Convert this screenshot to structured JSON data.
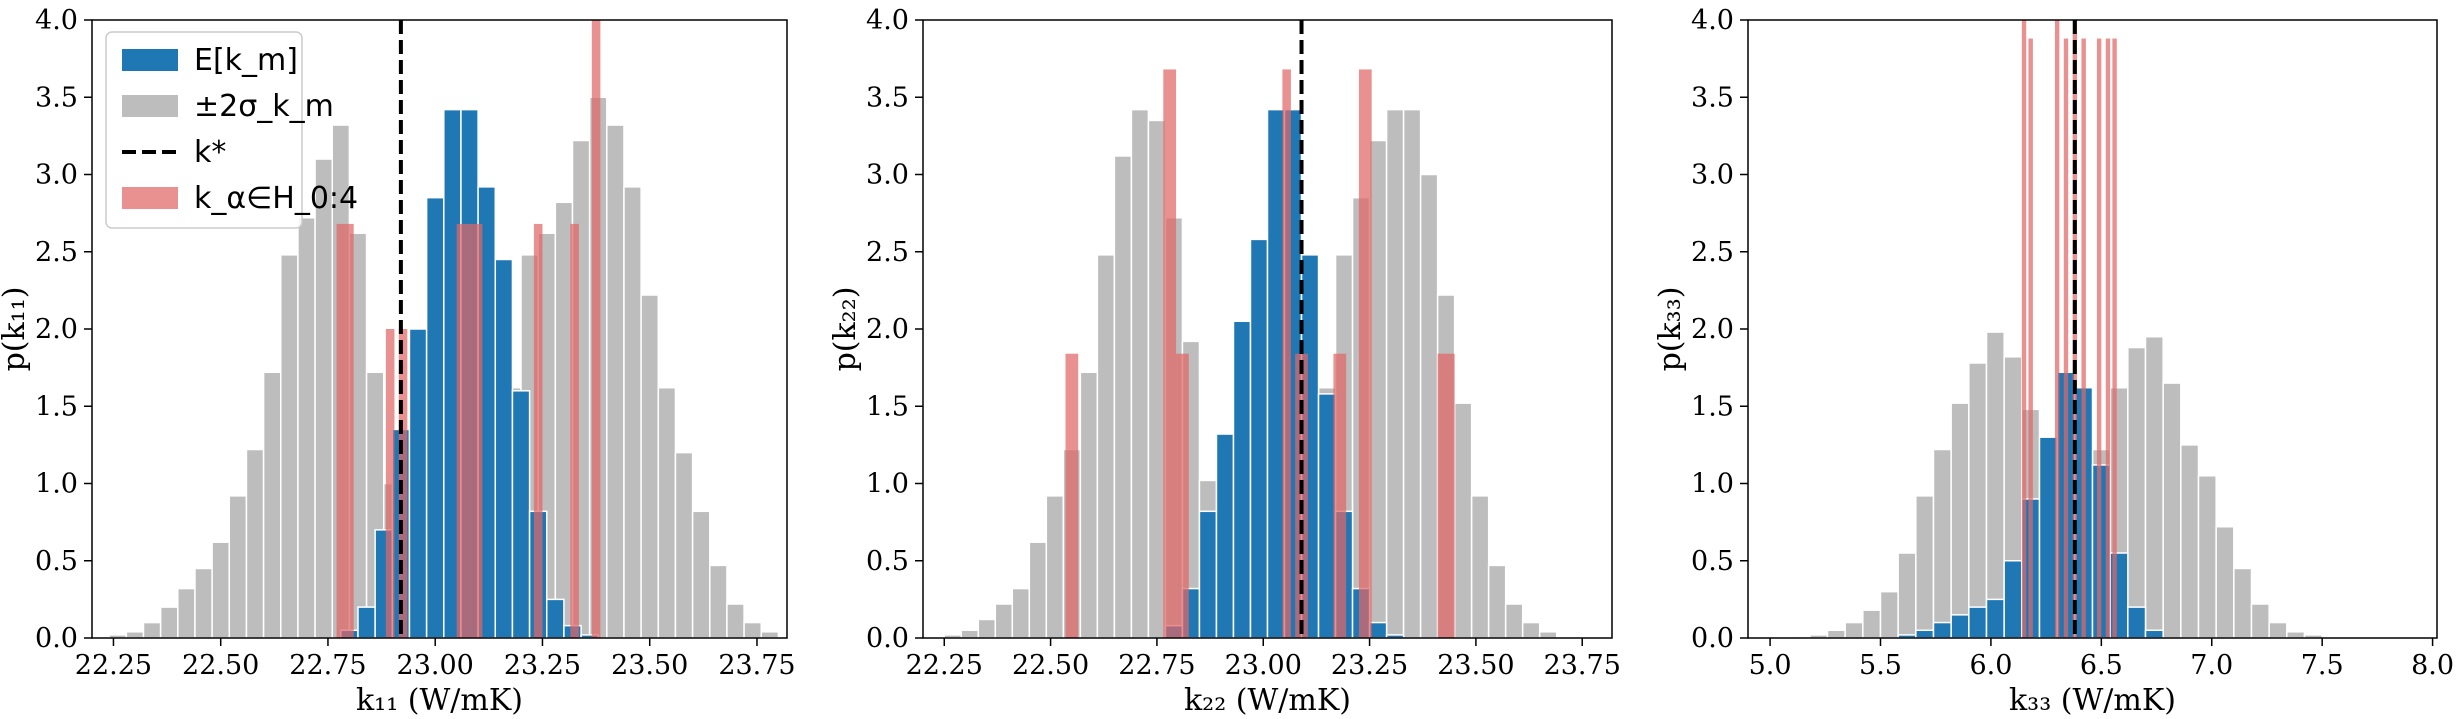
{
  "chart_data": [
    {
      "type": "histogram",
      "xlabel": "k₁₁ (W/mK)",
      "ylabel": "p(k₁₁)",
      "xlim": [
        22.2,
        23.82
      ],
      "ylim": [
        0,
        4.0
      ],
      "xticks": [
        "22.25",
        "22.50",
        "22.75",
        "23.00",
        "23.25",
        "23.50",
        "23.75"
      ],
      "yticks": [
        "0.0",
        "0.5",
        "1.0",
        "1.5",
        "2.0",
        "2.5",
        "3.0",
        "3.5",
        "4.0"
      ],
      "k_star": 22.92,
      "series": [
        {
          "name": "±2σ",
          "color": "#bdbdbd",
          "bins": [
            [
              22.24,
              22.28,
              0.02
            ],
            [
              22.28,
              22.32,
              0.04
            ],
            [
              22.32,
              22.36,
              0.1
            ],
            [
              22.36,
              22.4,
              0.2
            ],
            [
              22.4,
              22.44,
              0.32
            ],
            [
              22.44,
              22.48,
              0.45
            ],
            [
              22.48,
              22.52,
              0.62
            ],
            [
              22.52,
              22.56,
              0.92
            ],
            [
              22.56,
              22.6,
              1.22
            ],
            [
              22.6,
              22.64,
              1.72
            ],
            [
              22.64,
              22.68,
              2.48
            ],
            [
              22.68,
              22.72,
              2.72
            ],
            [
              22.72,
              22.76,
              3.1
            ],
            [
              22.76,
              22.8,
              3.32
            ],
            [
              22.8,
              22.84,
              2.62
            ],
            [
              22.84,
              22.88,
              1.72
            ],
            [
              22.88,
              22.92,
              1.0
            ],
            [
              22.92,
              22.96,
              0.52
            ],
            [
              22.96,
              23.0,
              0.22
            ],
            [
              23.0,
              23.04,
              0.12
            ],
            [
              23.04,
              23.08,
              0.22
            ],
            [
              23.08,
              23.12,
              0.52
            ],
            [
              23.12,
              23.16,
              1.02
            ],
            [
              23.16,
              23.2,
              1.62
            ],
            [
              23.2,
              23.24,
              2.48
            ],
            [
              23.24,
              23.28,
              2.62
            ],
            [
              23.28,
              23.32,
              2.82
            ],
            [
              23.32,
              23.36,
              3.22
            ],
            [
              23.36,
              23.4,
              3.5
            ],
            [
              23.4,
              23.44,
              3.32
            ],
            [
              23.44,
              23.48,
              2.92
            ],
            [
              23.48,
              23.52,
              2.22
            ],
            [
              23.52,
              23.56,
              1.62
            ],
            [
              23.56,
              23.6,
              1.2
            ],
            [
              23.6,
              23.64,
              0.82
            ],
            [
              23.64,
              23.68,
              0.47
            ],
            [
              23.68,
              23.72,
              0.22
            ],
            [
              23.72,
              23.76,
              0.1
            ],
            [
              23.76,
              23.8,
              0.04
            ]
          ]
        },
        {
          "name": "E[k_m]",
          "color": "#1f77b4",
          "bins": [
            [
              22.78,
              22.82,
              0.05
            ],
            [
              22.82,
              22.86,
              0.2
            ],
            [
              22.86,
              22.9,
              0.7
            ],
            [
              22.9,
              22.94,
              1.35
            ],
            [
              22.94,
              22.98,
              2.0
            ],
            [
              22.98,
              23.02,
              2.85
            ],
            [
              23.02,
              23.06,
              3.42
            ],
            [
              23.06,
              23.1,
              3.42
            ],
            [
              23.1,
              23.14,
              2.92
            ],
            [
              23.14,
              23.18,
              2.45
            ],
            [
              23.18,
              23.22,
              1.6
            ],
            [
              23.22,
              23.26,
              0.82
            ],
            [
              23.26,
              23.3,
              0.25
            ],
            [
              23.3,
              23.34,
              0.08
            ],
            [
              23.34,
              23.38,
              0.02
            ]
          ]
        },
        {
          "name": "k_α∈H_0:4",
          "color": "#e06666",
          "bins": [
            [
              22.77,
              22.79,
              2.68
            ],
            [
              22.79,
              22.81,
              2.68
            ],
            [
              22.885,
              22.905,
              2.0
            ],
            [
              22.915,
              22.935,
              2.0
            ],
            [
              23.05,
              23.09,
              2.68
            ],
            [
              23.09,
              23.11,
              2.68
            ],
            [
              23.23,
              23.25,
              2.68
            ],
            [
              23.315,
              23.335,
              2.68
            ],
            [
              23.365,
              23.385,
              4.0
            ]
          ]
        }
      ],
      "legend": [
        "E[k_m]",
        "±2σ_k_m",
        "k*",
        "k_α∈H_0:4"
      ]
    },
    {
      "type": "histogram",
      "xlabel": "k₂₂ (W/mK)",
      "ylabel": "p(k₂₂)",
      "xlim": [
        22.2,
        23.82
      ],
      "ylim": [
        0,
        4.0
      ],
      "xticks": [
        "22.25",
        "22.50",
        "22.75",
        "23.00",
        "23.25",
        "23.50",
        "23.75"
      ],
      "yticks": [
        "0.0",
        "0.5",
        "1.0",
        "1.5",
        "2.0",
        "2.5",
        "3.0",
        "3.5",
        "4.0"
      ],
      "k_star": 23.09,
      "series": [
        {
          "name": "±2σ",
          "color": "#bdbdbd",
          "bins": [
            [
              22.25,
              22.29,
              0.02
            ],
            [
              22.29,
              22.33,
              0.05
            ],
            [
              22.33,
              22.37,
              0.12
            ],
            [
              22.37,
              22.41,
              0.22
            ],
            [
              22.41,
              22.45,
              0.32
            ],
            [
              22.45,
              22.49,
              0.62
            ],
            [
              22.49,
              22.53,
              0.92
            ],
            [
              22.53,
              22.57,
              1.22
            ],
            [
              22.57,
              22.61,
              1.72
            ],
            [
              22.61,
              22.65,
              2.48
            ],
            [
              22.65,
              22.69,
              3.12
            ],
            [
              22.69,
              22.73,
              3.42
            ],
            [
              22.73,
              22.77,
              3.35
            ],
            [
              22.77,
              22.81,
              2.72
            ],
            [
              22.81,
              22.85,
              1.92
            ],
            [
              22.85,
              22.89,
              1.02
            ],
            [
              22.89,
              22.93,
              0.52
            ],
            [
              22.93,
              22.97,
              0.22
            ],
            [
              22.97,
              23.01,
              0.12
            ],
            [
              23.01,
              23.05,
              0.22
            ],
            [
              23.05,
              23.09,
              0.52
            ],
            [
              23.09,
              23.13,
              1.0
            ],
            [
              23.13,
              23.17,
              1.62
            ],
            [
              23.17,
              23.21,
              2.48
            ],
            [
              23.21,
              23.25,
              2.85
            ],
            [
              23.25,
              23.29,
              3.22
            ],
            [
              23.29,
              23.33,
              3.42
            ],
            [
              23.33,
              23.37,
              3.42
            ],
            [
              23.37,
              23.41,
              3.0
            ],
            [
              23.41,
              23.45,
              2.22
            ],
            [
              23.45,
              23.49,
              1.52
            ],
            [
              23.49,
              23.53,
              0.92
            ],
            [
              23.53,
              23.57,
              0.47
            ],
            [
              23.57,
              23.61,
              0.22
            ],
            [
              23.61,
              23.65,
              0.1
            ],
            [
              23.65,
              23.69,
              0.04
            ]
          ]
        },
        {
          "name": "E[k_m]",
          "color": "#1f77b4",
          "bins": [
            [
              22.77,
              22.81,
              0.08
            ],
            [
              22.81,
              22.85,
              0.32
            ],
            [
              22.85,
              22.89,
              0.82
            ],
            [
              22.89,
              22.93,
              1.32
            ],
            [
              22.93,
              22.97,
              2.05
            ],
            [
              22.97,
              23.01,
              2.58
            ],
            [
              23.01,
              23.05,
              3.42
            ],
            [
              23.05,
              23.09,
              3.42
            ],
            [
              23.09,
              23.13,
              2.48
            ],
            [
              23.13,
              23.17,
              1.58
            ],
            [
              23.17,
              23.21,
              0.82
            ],
            [
              23.21,
              23.25,
              0.32
            ],
            [
              23.25,
              23.29,
              0.1
            ],
            [
              23.29,
              23.33,
              0.02
            ]
          ]
        },
        {
          "name": "k_α∈H_0:4",
          "color": "#e06666",
          "bins": [
            [
              22.535,
              22.565,
              1.84
            ],
            [
              22.765,
              22.795,
              3.68
            ],
            [
              22.795,
              22.825,
              1.84
            ],
            [
              23.045,
              23.065,
              3.68
            ],
            [
              23.075,
              23.105,
              1.84
            ],
            [
              23.165,
              23.195,
              1.84
            ],
            [
              23.225,
              23.255,
              3.68
            ],
            [
              23.41,
              23.45,
              1.84
            ]
          ]
        }
      ]
    },
    {
      "type": "histogram",
      "xlabel": "k₃₃ (W/mK)",
      "ylabel": "p(k₃₃)",
      "xlim": [
        4.9,
        8.02
      ],
      "ylim": [
        0,
        4.0
      ],
      "xticks": [
        "5.0",
        "5.5",
        "6.0",
        "6.5",
        "7.0",
        "7.5",
        "8.0"
      ],
      "yticks": [
        "0.0",
        "0.5",
        "1.0",
        "1.5",
        "2.0",
        "2.5",
        "3.0",
        "3.5",
        "4.0"
      ],
      "k_star": 6.38,
      "series": [
        {
          "name": "±2σ",
          "color": "#bdbdbd",
          "bins": [
            [
              5.1,
              5.18,
              0.01
            ],
            [
              5.18,
              5.26,
              0.02
            ],
            [
              5.26,
              5.34,
              0.05
            ],
            [
              5.34,
              5.42,
              0.1
            ],
            [
              5.42,
              5.5,
              0.18
            ],
            [
              5.5,
              5.58,
              0.3
            ],
            [
              5.58,
              5.66,
              0.55
            ],
            [
              5.66,
              5.74,
              0.92
            ],
            [
              5.74,
              5.82,
              1.22
            ],
            [
              5.82,
              5.9,
              1.52
            ],
            [
              5.9,
              5.98,
              1.78
            ],
            [
              5.98,
              6.06,
              1.98
            ],
            [
              6.06,
              6.14,
              1.82
            ],
            [
              6.14,
              6.22,
              1.48
            ],
            [
              6.22,
              6.3,
              1.0
            ],
            [
              6.3,
              6.38,
              0.62
            ],
            [
              6.38,
              6.46,
              0.82
            ],
            [
              6.46,
              6.54,
              1.22
            ],
            [
              6.54,
              6.62,
              1.62
            ],
            [
              6.62,
              6.7,
              1.88
            ],
            [
              6.7,
              6.78,
              1.95
            ],
            [
              6.78,
              6.86,
              1.65
            ],
            [
              6.86,
              6.94,
              1.25
            ],
            [
              6.94,
              7.02,
              1.05
            ],
            [
              7.02,
              7.1,
              0.72
            ],
            [
              7.1,
              7.18,
              0.45
            ],
            [
              7.18,
              7.26,
              0.22
            ],
            [
              7.26,
              7.34,
              0.1
            ],
            [
              7.34,
              7.42,
              0.04
            ],
            [
              7.42,
              7.5,
              0.02
            ]
          ]
        },
        {
          "name": "E[k_m]",
          "color": "#1f77b4",
          "bins": [
            [
              5.58,
              5.66,
              0.02
            ],
            [
              5.66,
              5.74,
              0.05
            ],
            [
              5.74,
              5.82,
              0.1
            ],
            [
              5.82,
              5.9,
              0.15
            ],
            [
              5.9,
              5.98,
              0.2
            ],
            [
              5.98,
              6.06,
              0.25
            ],
            [
              6.06,
              6.14,
              0.5
            ],
            [
              6.14,
              6.22,
              0.9
            ],
            [
              6.22,
              6.3,
              1.3
            ],
            [
              6.3,
              6.38,
              1.72
            ],
            [
              6.38,
              6.46,
              1.62
            ],
            [
              6.46,
              6.54,
              1.12
            ],
            [
              6.54,
              6.62,
              0.55
            ],
            [
              6.62,
              6.7,
              0.2
            ],
            [
              6.7,
              6.78,
              0.05
            ]
          ]
        },
        {
          "name": "k_α∈H_0:4",
          "color": "#e06666",
          "bins": [
            [
              6.14,
              6.16,
              4.0
            ],
            [
              6.17,
              6.19,
              3.88
            ],
            [
              6.29,
              6.31,
              4.0
            ],
            [
              6.33,
              6.35,
              3.88
            ],
            [
              6.37,
              6.39,
              4.0
            ],
            [
              6.41,
              6.43,
              3.88
            ],
            [
              6.48,
              6.5,
              3.88
            ],
            [
              6.52,
              6.54,
              3.88
            ],
            [
              6.55,
              6.57,
              3.88
            ]
          ]
        }
      ]
    }
  ]
}
